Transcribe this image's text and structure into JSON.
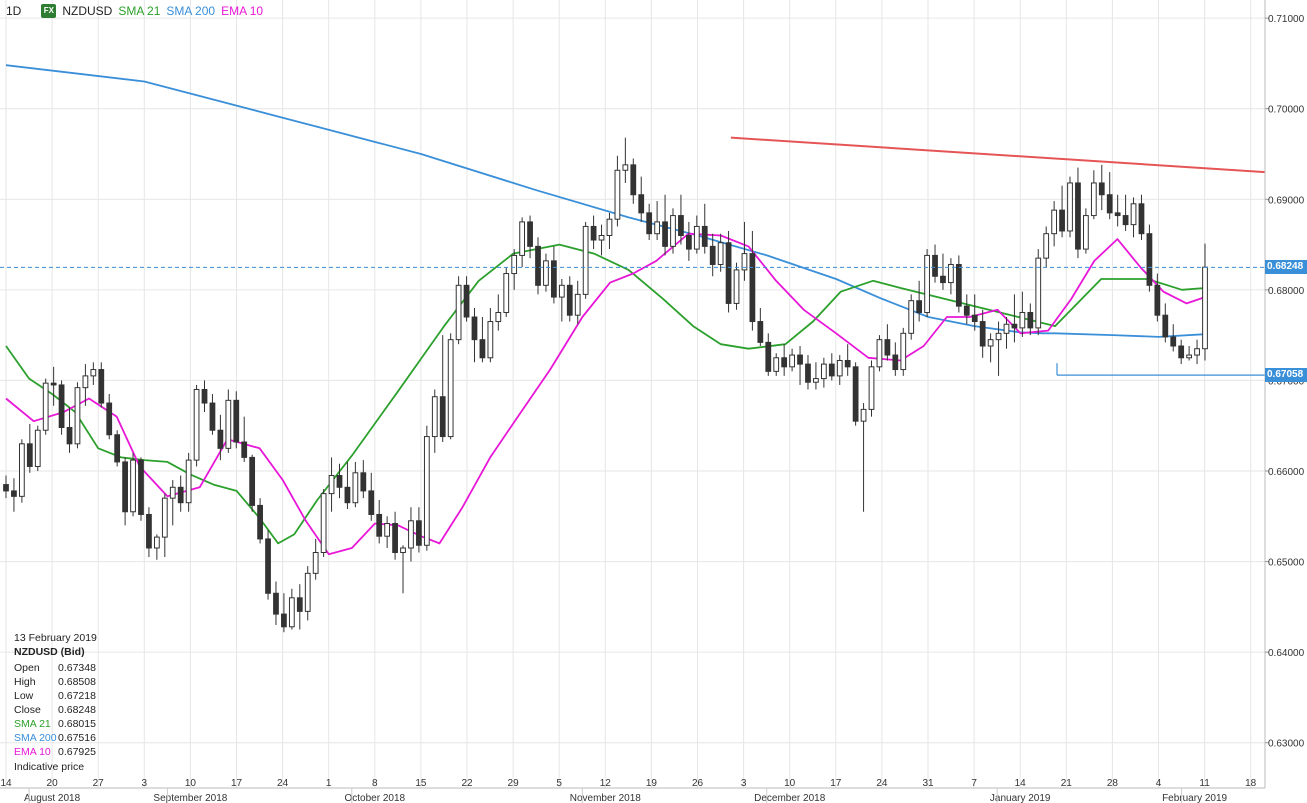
{
  "header": {
    "timeframe": "1D",
    "fx_badge": "FX",
    "symbol": "NZDUSD",
    "indicators": [
      {
        "label": "SMA 21",
        "color": "#2ca02c"
      },
      {
        "label": "SMA 200",
        "color": "#3a8fd9"
      },
      {
        "label": "EMA 10",
        "color": "#e817d8"
      }
    ]
  },
  "info_panel": {
    "date": "13 February 2019",
    "instrument": "NZDUSD (Bid)",
    "rows": [
      {
        "k": "Open",
        "v": "0.67348"
      },
      {
        "k": "High",
        "v": "0.68508"
      },
      {
        "k": "Low",
        "v": "0.67218"
      },
      {
        "k": "Close",
        "v": "0.68248"
      },
      {
        "k": "SMA 21",
        "v": "0.68015",
        "color": "#2ca02c"
      },
      {
        "k": "SMA 200",
        "v": "0.67516",
        "color": "#3a8fd9"
      },
      {
        "k": "EMA 10",
        "v": "0.67925",
        "color": "#e817d8"
      }
    ],
    "footnote": "Indicative price"
  },
  "price_badges": [
    {
      "label": "0.68248",
      "value": 0.68248,
      "color": "#3a8fd9"
    },
    {
      "label": "0.67058",
      "value": 0.67058,
      "color": "#3a8fd9"
    }
  ],
  "chart_data": {
    "type": "candlestick",
    "ylim": [
      0.625,
      0.712
    ],
    "y_ticks": [
      {
        "v": 0.71,
        "label": "0.71000"
      },
      {
        "v": 0.7,
        "label": "0.70000"
      },
      {
        "v": 0.69,
        "label": "0.69000"
      },
      {
        "v": 0.68,
        "label": "0.68000"
      },
      {
        "v": 0.67,
        "label": "0.67000"
      },
      {
        "v": 0.66,
        "label": "0.66000"
      },
      {
        "v": 0.65,
        "label": "0.65000"
      },
      {
        "v": 0.64,
        "label": "0.64000"
      },
      {
        "v": 0.63,
        "label": "0.63000"
      }
    ],
    "x_ticks": [
      "14",
      "20",
      "27",
      "3",
      "10",
      "17",
      "24",
      "1",
      "8",
      "15",
      "22",
      "29",
      "5",
      "12",
      "19",
      "26",
      "3",
      "10",
      "17",
      "24",
      "31",
      "7",
      "14",
      "21",
      "28",
      "4",
      "11",
      "18"
    ],
    "x_months": [
      "August 2018",
      "September 2018",
      "October 2018",
      "November 2018",
      "December 2018",
      "January 2019",
      "February 2019"
    ],
    "candles": [
      [
        0.6585,
        0.6595,
        0.657,
        0.6578
      ],
      [
        0.6578,
        0.6592,
        0.6555,
        0.6572
      ],
      [
        0.6572,
        0.6635,
        0.6565,
        0.663
      ],
      [
        0.663,
        0.6652,
        0.6598,
        0.6605
      ],
      [
        0.6605,
        0.665,
        0.66,
        0.6645
      ],
      [
        0.6645,
        0.6702,
        0.664,
        0.6697
      ],
      [
        0.6697,
        0.6715,
        0.6672,
        0.6695
      ],
      [
        0.6695,
        0.67,
        0.664,
        0.6648
      ],
      [
        0.6648,
        0.667,
        0.662,
        0.663
      ],
      [
        0.663,
        0.6698,
        0.6625,
        0.6692
      ],
      [
        0.6692,
        0.6718,
        0.6672,
        0.6705
      ],
      [
        0.6705,
        0.672,
        0.6695,
        0.6712
      ],
      [
        0.6712,
        0.672,
        0.667,
        0.6675
      ],
      [
        0.6675,
        0.6685,
        0.6635,
        0.664
      ],
      [
        0.664,
        0.6645,
        0.6605,
        0.661
      ],
      [
        0.661,
        0.6615,
        0.654,
        0.6555
      ],
      [
        0.6555,
        0.662,
        0.655,
        0.6612
      ],
      [
        0.6612,
        0.6615,
        0.6545,
        0.6552
      ],
      [
        0.6552,
        0.656,
        0.6505,
        0.6515
      ],
      [
        0.6515,
        0.653,
        0.6502,
        0.6527
      ],
      [
        0.6527,
        0.6575,
        0.6505,
        0.657
      ],
      [
        0.657,
        0.659,
        0.654,
        0.6582
      ],
      [
        0.6582,
        0.6595,
        0.6555,
        0.6565
      ],
      [
        0.6565,
        0.662,
        0.6555,
        0.6612
      ],
      [
        0.6612,
        0.6695,
        0.6605,
        0.669
      ],
      [
        0.669,
        0.67,
        0.6665,
        0.6675
      ],
      [
        0.6675,
        0.6685,
        0.664,
        0.6645
      ],
      [
        0.6645,
        0.6662,
        0.6612,
        0.6625
      ],
      [
        0.6625,
        0.669,
        0.662,
        0.6678
      ],
      [
        0.6678,
        0.6688,
        0.6625,
        0.6632
      ],
      [
        0.6632,
        0.666,
        0.661,
        0.6615
      ],
      [
        0.6615,
        0.6618,
        0.6555,
        0.6562
      ],
      [
        0.6562,
        0.657,
        0.652,
        0.6525
      ],
      [
        0.6525,
        0.6535,
        0.6458,
        0.6465
      ],
      [
        0.6465,
        0.6478,
        0.643,
        0.6442
      ],
      [
        0.6442,
        0.6465,
        0.6422,
        0.6428
      ],
      [
        0.6428,
        0.647,
        0.6425,
        0.646
      ],
      [
        0.646,
        0.6475,
        0.6425,
        0.6445
      ],
      [
        0.6445,
        0.6495,
        0.6435,
        0.6487
      ],
      [
        0.6487,
        0.6525,
        0.648,
        0.651
      ],
      [
        0.651,
        0.658,
        0.6505,
        0.6575
      ],
      [
        0.6575,
        0.6615,
        0.6555,
        0.6595
      ],
      [
        0.6595,
        0.6608,
        0.657,
        0.6582
      ],
      [
        0.6582,
        0.661,
        0.6558,
        0.6565
      ],
      [
        0.6565,
        0.661,
        0.656,
        0.6598
      ],
      [
        0.6598,
        0.6612,
        0.657,
        0.6578
      ],
      [
        0.6578,
        0.6598,
        0.6545,
        0.6552
      ],
      [
        0.6552,
        0.6568,
        0.652,
        0.6528
      ],
      [
        0.6528,
        0.655,
        0.6515,
        0.6542
      ],
      [
        0.6542,
        0.6555,
        0.6502,
        0.651
      ],
      [
        0.651,
        0.6518,
        0.6465,
        0.6515
      ],
      [
        0.6515,
        0.656,
        0.65,
        0.6545
      ],
      [
        0.6545,
        0.656,
        0.651,
        0.6518
      ],
      [
        0.6518,
        0.665,
        0.6512,
        0.6638
      ],
      [
        0.6638,
        0.669,
        0.662,
        0.6682
      ],
      [
        0.6682,
        0.675,
        0.6632,
        0.6638
      ],
      [
        0.6638,
        0.6752,
        0.6635,
        0.6745
      ],
      [
        0.6745,
        0.6815,
        0.674,
        0.6805
      ],
      [
        0.6805,
        0.6815,
        0.6765,
        0.677
      ],
      [
        0.677,
        0.678,
        0.672,
        0.6745
      ],
      [
        0.6745,
        0.677,
        0.672,
        0.6725
      ],
      [
        0.6725,
        0.678,
        0.672,
        0.6765
      ],
      [
        0.6765,
        0.6795,
        0.6755,
        0.6775
      ],
      [
        0.6775,
        0.6825,
        0.677,
        0.6818
      ],
      [
        0.6818,
        0.6845,
        0.68,
        0.6838
      ],
      [
        0.6838,
        0.688,
        0.6825,
        0.6875
      ],
      [
        0.6875,
        0.6882,
        0.6835,
        0.6848
      ],
      [
        0.6848,
        0.6858,
        0.6795,
        0.6805
      ],
      [
        0.6805,
        0.684,
        0.6798,
        0.6832
      ],
      [
        0.6832,
        0.6848,
        0.6785,
        0.6792
      ],
      [
        0.6792,
        0.6812,
        0.6765,
        0.6805
      ],
      [
        0.6805,
        0.6815,
        0.6765,
        0.6772
      ],
      [
        0.6772,
        0.681,
        0.6762,
        0.6795
      ],
      [
        0.6795,
        0.6875,
        0.679,
        0.687
      ],
      [
        0.687,
        0.6882,
        0.6845,
        0.6855
      ],
      [
        0.6855,
        0.6872,
        0.6838,
        0.686
      ],
      [
        0.686,
        0.6885,
        0.6845,
        0.6878
      ],
      [
        0.6878,
        0.6948,
        0.687,
        0.6932
      ],
      [
        0.6932,
        0.6968,
        0.6918,
        0.6938
      ],
      [
        0.6938,
        0.6945,
        0.6895,
        0.6905
      ],
      [
        0.6905,
        0.6925,
        0.6875,
        0.6885
      ],
      [
        0.6885,
        0.6895,
        0.6855,
        0.6862
      ],
      [
        0.6862,
        0.6898,
        0.6855,
        0.6875
      ],
      [
        0.6875,
        0.6905,
        0.6838,
        0.6848
      ],
      [
        0.6848,
        0.689,
        0.684,
        0.6882
      ],
      [
        0.6882,
        0.6905,
        0.685,
        0.686
      ],
      [
        0.686,
        0.6875,
        0.6832,
        0.6845
      ],
      [
        0.6845,
        0.6882,
        0.684,
        0.687
      ],
      [
        0.687,
        0.6895,
        0.684,
        0.6848
      ],
      [
        0.6848,
        0.6862,
        0.6815,
        0.6828
      ],
      [
        0.6828,
        0.6862,
        0.682,
        0.6852
      ],
      [
        0.6852,
        0.6865,
        0.6775,
        0.6785
      ],
      [
        0.6785,
        0.683,
        0.6778,
        0.6822
      ],
      [
        0.6822,
        0.6875,
        0.681,
        0.684
      ],
      [
        0.684,
        0.6865,
        0.6755,
        0.6765
      ],
      [
        0.6765,
        0.678,
        0.6738,
        0.6742
      ],
      [
        0.6742,
        0.6752,
        0.6705,
        0.671
      ],
      [
        0.671,
        0.673,
        0.6705,
        0.6725
      ],
      [
        0.6725,
        0.674,
        0.6705,
        0.6715
      ],
      [
        0.6715,
        0.6735,
        0.671,
        0.6728
      ],
      [
        0.6728,
        0.6738,
        0.6695,
        0.6718
      ],
      [
        0.6718,
        0.6728,
        0.669,
        0.6698
      ],
      [
        0.6698,
        0.672,
        0.669,
        0.6702
      ],
      [
        0.6702,
        0.6725,
        0.6692,
        0.6718
      ],
      [
        0.6718,
        0.673,
        0.67,
        0.6705
      ],
      [
        0.6705,
        0.6728,
        0.6695,
        0.6722
      ],
      [
        0.6722,
        0.674,
        0.6705,
        0.6715
      ],
      [
        0.6715,
        0.672,
        0.665,
        0.6655
      ],
      [
        0.6655,
        0.6675,
        0.6555,
        0.6668
      ],
      [
        0.6668,
        0.6722,
        0.666,
        0.6715
      ],
      [
        0.6715,
        0.675,
        0.671,
        0.6745
      ],
      [
        0.6745,
        0.6762,
        0.6722,
        0.6728
      ],
      [
        0.6728,
        0.6742,
        0.6705,
        0.6712
      ],
      [
        0.6712,
        0.6758,
        0.6705,
        0.6752
      ],
      [
        0.6752,
        0.6795,
        0.6745,
        0.6788
      ],
      [
        0.6788,
        0.681,
        0.6765,
        0.6775
      ],
      [
        0.6775,
        0.6845,
        0.677,
        0.6838
      ],
      [
        0.6838,
        0.685,
        0.6808,
        0.6815
      ],
      [
        0.6815,
        0.684,
        0.68,
        0.6808
      ],
      [
        0.6808,
        0.6835,
        0.6795,
        0.6828
      ],
      [
        0.6828,
        0.6838,
        0.6775,
        0.6782
      ],
      [
        0.6782,
        0.6795,
        0.6762,
        0.6772
      ],
      [
        0.6772,
        0.6795,
        0.6755,
        0.6765
      ],
      [
        0.6765,
        0.6778,
        0.6725,
        0.6738
      ],
      [
        0.6738,
        0.6752,
        0.672,
        0.6745
      ],
      [
        0.6745,
        0.6765,
        0.6705,
        0.6752
      ],
      [
        0.6752,
        0.677,
        0.6735,
        0.6762
      ],
      [
        0.6762,
        0.6795,
        0.6742,
        0.6758
      ],
      [
        0.6758,
        0.6798,
        0.6748,
        0.6775
      ],
      [
        0.6775,
        0.6785,
        0.675,
        0.6758
      ],
      [
        0.6758,
        0.6845,
        0.675,
        0.6835
      ],
      [
        0.6835,
        0.687,
        0.6825,
        0.6862
      ],
      [
        0.6862,
        0.6898,
        0.6848,
        0.6888
      ],
      [
        0.6888,
        0.6915,
        0.6858,
        0.6865
      ],
      [
        0.6865,
        0.6925,
        0.6858,
        0.6918
      ],
      [
        0.6918,
        0.6935,
        0.6835,
        0.6845
      ],
      [
        0.6845,
        0.689,
        0.684,
        0.6882
      ],
      [
        0.6882,
        0.6932,
        0.6878,
        0.6918
      ],
      [
        0.6918,
        0.6938,
        0.6888,
        0.6905
      ],
      [
        0.6905,
        0.693,
        0.6878,
        0.6885
      ],
      [
        0.6885,
        0.6905,
        0.687,
        0.6882
      ],
      [
        0.6882,
        0.6905,
        0.6865,
        0.6872
      ],
      [
        0.6872,
        0.6902,
        0.6858,
        0.6895
      ],
      [
        0.6895,
        0.6905,
        0.6855,
        0.6862
      ],
      [
        0.6862,
        0.6872,
        0.6798,
        0.6805
      ],
      [
        0.6805,
        0.6818,
        0.6765,
        0.6772
      ],
      [
        0.6772,
        0.6785,
        0.6742,
        0.6748
      ],
      [
        0.6748,
        0.6762,
        0.6732,
        0.6738
      ],
      [
        0.6738,
        0.6745,
        0.6718,
        0.6725
      ],
      [
        0.6725,
        0.6738,
        0.6722,
        0.6728
      ],
      [
        0.6728,
        0.6745,
        0.6718,
        0.6735
      ],
      [
        0.6735,
        0.6851,
        0.6722,
        0.6825
      ]
    ],
    "sma21": [
      [
        0,
        0.6738
      ],
      [
        10,
        0.6702
      ],
      [
        20,
        0.6685
      ],
      [
        30,
        0.6665
      ],
      [
        40,
        0.6625
      ],
      [
        50,
        0.6615
      ],
      [
        60,
        0.6612
      ],
      [
        70,
        0.661
      ],
      [
        80,
        0.6596
      ],
      [
        90,
        0.6585
      ],
      [
        100,
        0.6578
      ],
      [
        110,
        0.6548
      ],
      [
        118,
        0.652
      ],
      [
        125,
        0.653
      ],
      [
        135,
        0.6568
      ],
      [
        150,
        0.6617
      ],
      [
        170,
        0.6688
      ],
      [
        190,
        0.676
      ],
      [
        205,
        0.681
      ],
      [
        220,
        0.684
      ],
      [
        240,
        0.685
      ],
      [
        255,
        0.684
      ],
      [
        270,
        0.6822
      ],
      [
        285,
        0.679
      ],
      [
        298,
        0.676
      ],
      [
        310,
        0.674
      ],
      [
        322,
        0.6735
      ],
      [
        338,
        0.674
      ],
      [
        350,
        0.6765
      ],
      [
        362,
        0.6798
      ],
      [
        376,
        0.681
      ],
      [
        388,
        0.6802
      ]
    ],
    "sma200": [
      [
        0,
        0.7048
      ],
      [
        60,
        0.703
      ],
      [
        120,
        0.699
      ],
      [
        180,
        0.695
      ],
      [
        230,
        0.691
      ],
      [
        270,
        0.688
      ],
      [
        300,
        0.686
      ],
      [
        330,
        0.6838
      ],
      [
        360,
        0.6812
      ],
      [
        380,
        0.679
      ],
      [
        400,
        0.677
      ],
      [
        420,
        0.676
      ],
      [
        440,
        0.6753
      ],
      [
        450,
        0.6752
      ]
    ],
    "ema10": [
      [
        0,
        0.668
      ],
      [
        12,
        0.6655
      ],
      [
        25,
        0.6665
      ],
      [
        36,
        0.668
      ],
      [
        48,
        0.666
      ],
      [
        58,
        0.6605
      ],
      [
        70,
        0.6572
      ],
      [
        84,
        0.6582
      ],
      [
        96,
        0.6635
      ],
      [
        110,
        0.6625
      ],
      [
        120,
        0.659
      ],
      [
        130,
        0.6545
      ],
      [
        140,
        0.6508
      ],
      [
        150,
        0.6515
      ],
      [
        160,
        0.6542
      ],
      [
        170,
        0.654
      ],
      [
        180,
        0.6528
      ],
      [
        188,
        0.652
      ],
      [
        198,
        0.656
      ],
      [
        210,
        0.6615
      ],
      [
        222,
        0.666
      ],
      [
        236,
        0.6712
      ],
      [
        250,
        0.677
      ],
      [
        262,
        0.6808
      ],
      [
        272,
        0.6818
      ],
      [
        282,
        0.6832
      ],
      [
        296,
        0.6862
      ],
      [
        310,
        0.686
      ],
      [
        322,
        0.6848
      ],
      [
        334,
        0.681
      ],
      [
        346,
        0.6778
      ],
      [
        360,
        0.6752
      ],
      [
        374,
        0.6725
      ],
      [
        388,
        0.6722
      ],
      [
        398,
        0.6738
      ],
      [
        408,
        0.677
      ],
      [
        418,
        0.677
      ],
      [
        430,
        0.6778
      ],
      [
        440,
        0.6752
      ],
      [
        452,
        0.6755
      ],
      [
        462,
        0.679
      ],
      [
        472,
        0.6832
      ],
      [
        482,
        0.6856
      ],
      [
        492,
        0.6825
      ],
      [
        502,
        0.6798
      ],
      [
        512,
        0.6785
      ],
      [
        520,
        0.6792
      ]
    ],
    "sma21_tail": [
      [
        455,
        0.676
      ],
      [
        475,
        0.6812
      ],
      [
        495,
        0.6812
      ],
      [
        510,
        0.68
      ],
      [
        520,
        0.6802
      ]
    ],
    "sma200_tail": [
      [
        455,
        0.6752
      ],
      [
        480,
        0.675
      ],
      [
        500,
        0.6748
      ],
      [
        520,
        0.6751
      ]
    ],
    "resistance_line": {
      "x1": 0.679,
      "y1": 0.6968,
      "x2": 1.0,
      "y2": 0.693
    },
    "support_line": {
      "x1": 0.8,
      "y1": 0.67058,
      "value": 0.67058
    },
    "current_price_line": 0.68248
  }
}
